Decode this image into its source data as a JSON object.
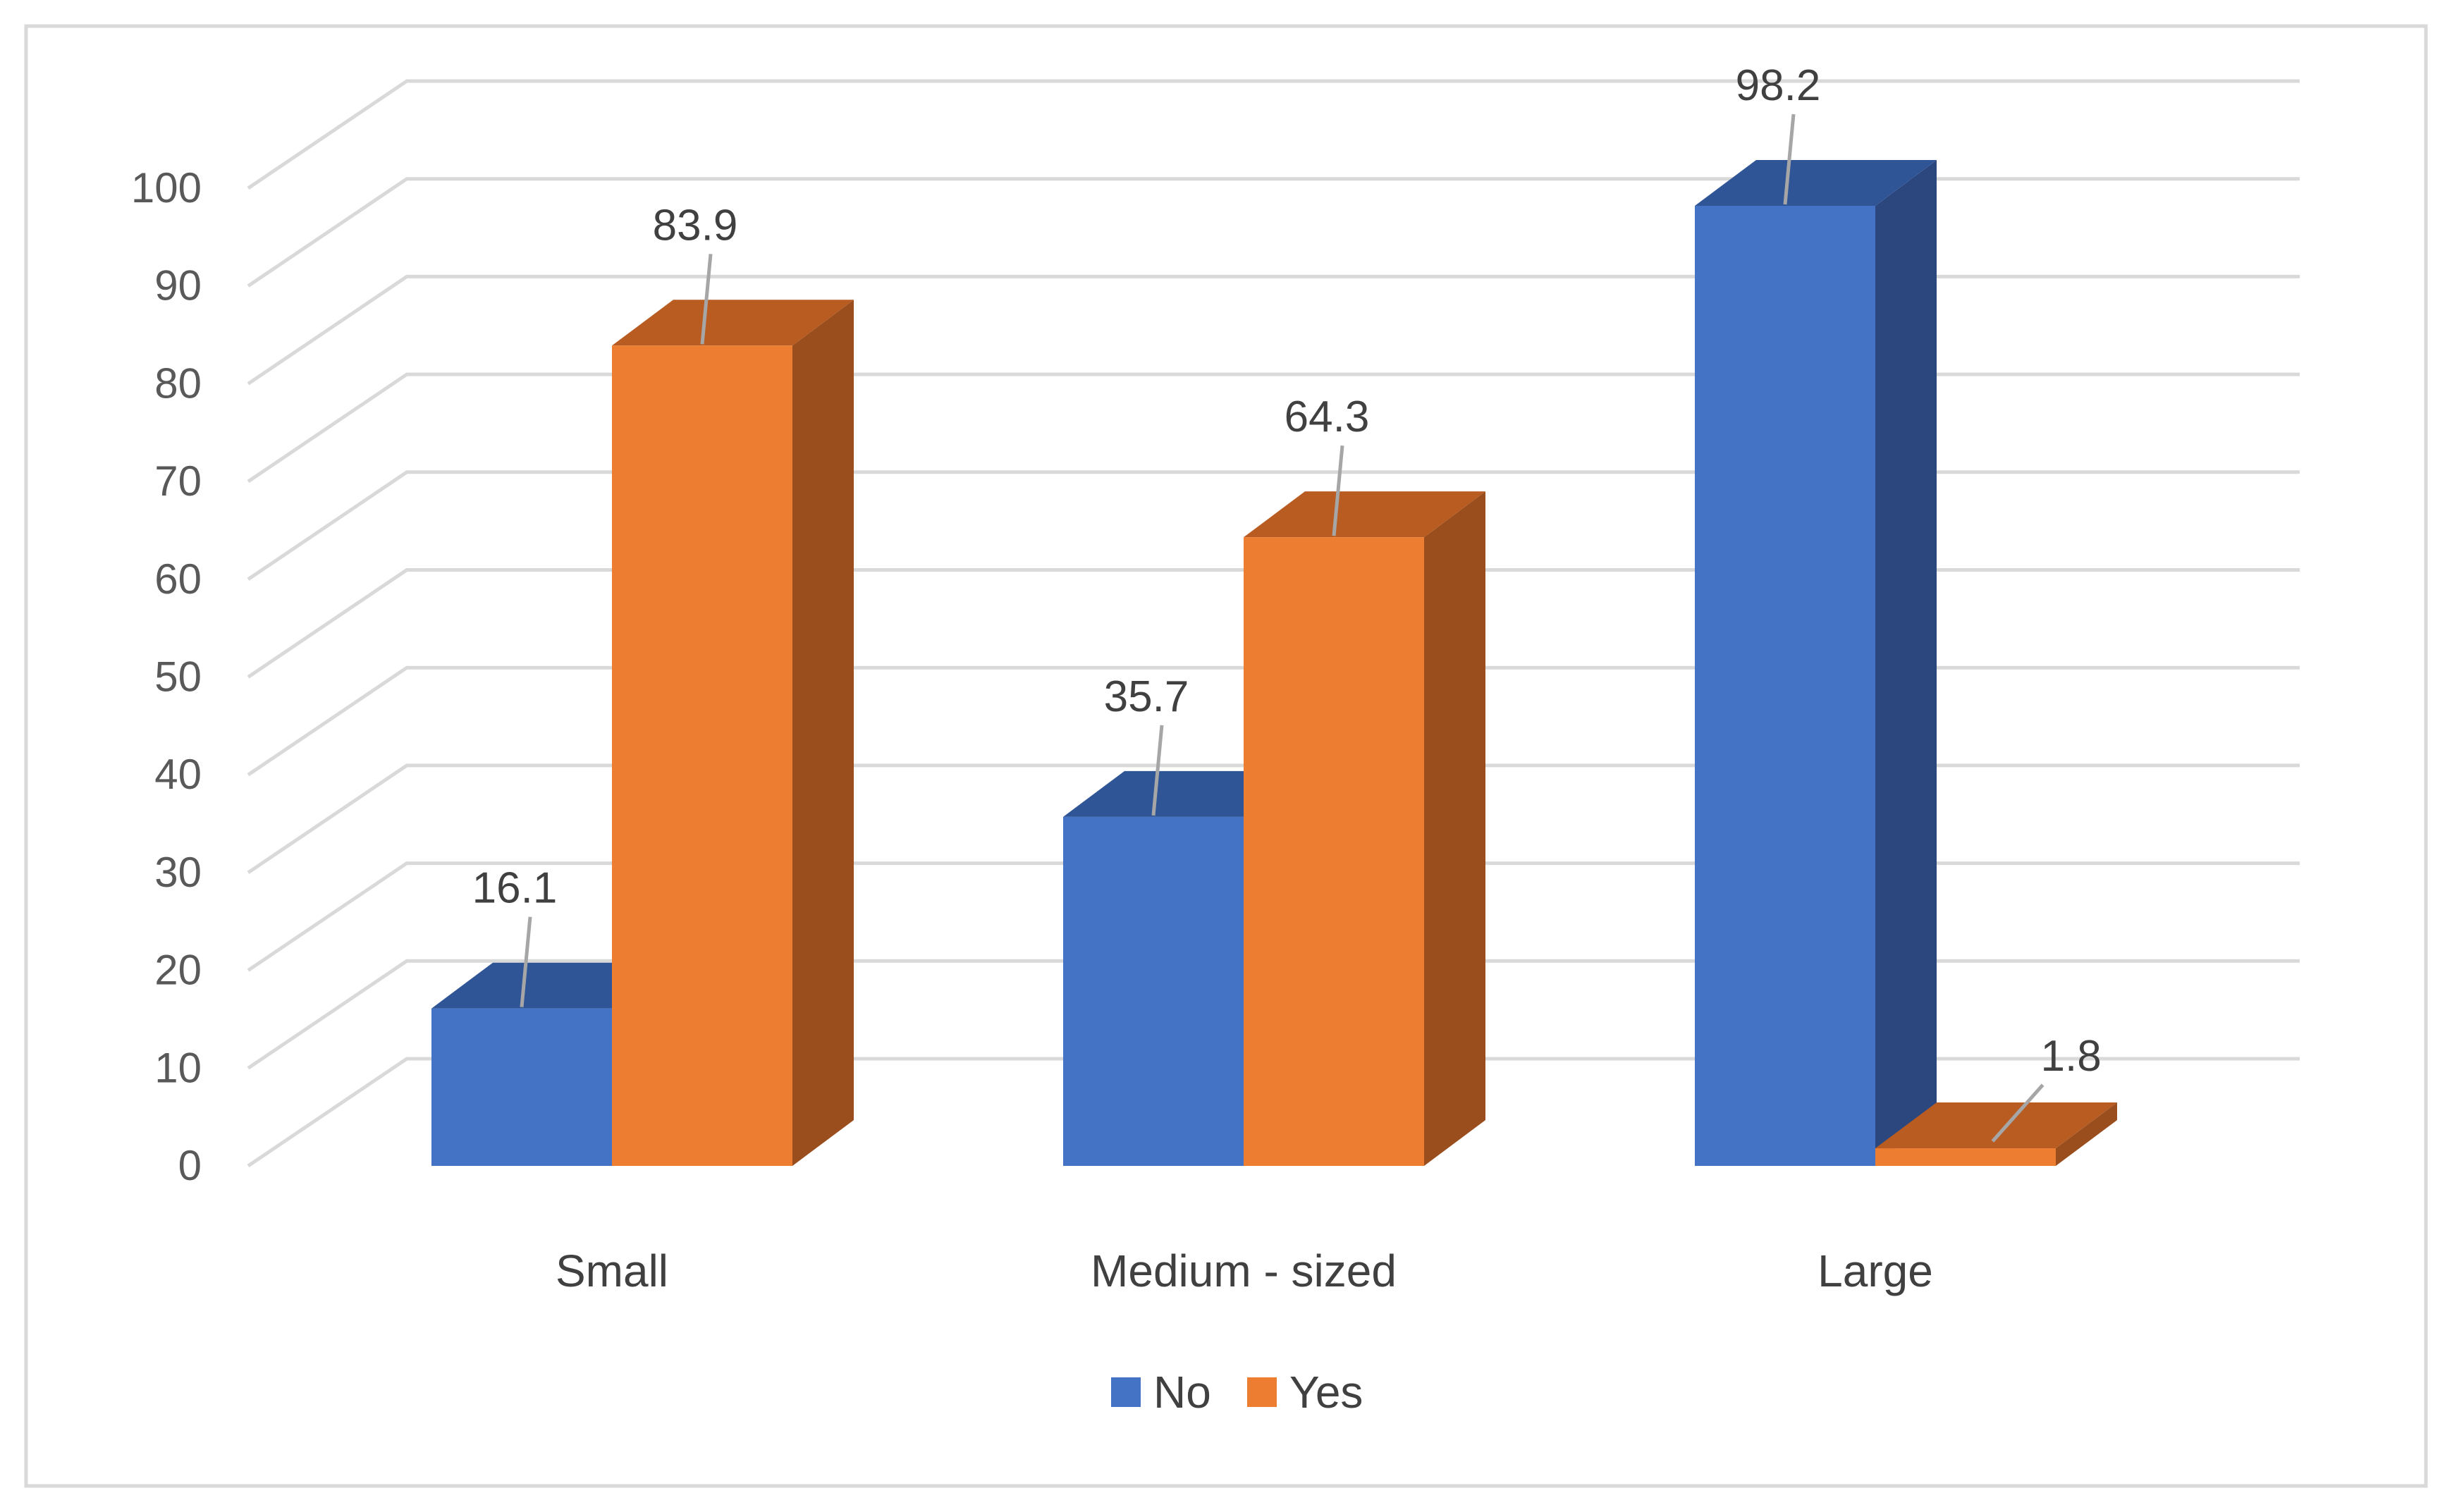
{
  "chart_data": {
    "type": "bar",
    "title": "",
    "xlabel": "",
    "ylabel": "",
    "categories": [
      "Small",
      "Medium - sized",
      "Large"
    ],
    "series": [
      {
        "name": "No",
        "values": [
          16.1,
          35.7,
          98.2
        ],
        "labels": [
          "16.1",
          "35.7",
          "98.2"
        ],
        "color": "#4472C4",
        "top_color": "#2F5597",
        "side_color": "#2B477E"
      },
      {
        "name": "Yes",
        "values": [
          83.9,
          64.3,
          1.8
        ],
        "labels": [
          "83.9",
          "64.3",
          "1.8"
        ],
        "color": "#ED7D31",
        "top_color": "#B85C22",
        "side_color": "#9A4E1D"
      }
    ],
    "ylim": [
      0,
      100
    ],
    "yticks": [
      0,
      10,
      20,
      30,
      40,
      50,
      60,
      70,
      80,
      90,
      100
    ],
    "ytick_labels": [
      "0",
      "10",
      "20",
      "30",
      "40",
      "50",
      "60",
      "70",
      "80",
      "90",
      "100"
    ],
    "grid": true,
    "legend_position": "bottom",
    "style": "3d-clustered-column"
  }
}
